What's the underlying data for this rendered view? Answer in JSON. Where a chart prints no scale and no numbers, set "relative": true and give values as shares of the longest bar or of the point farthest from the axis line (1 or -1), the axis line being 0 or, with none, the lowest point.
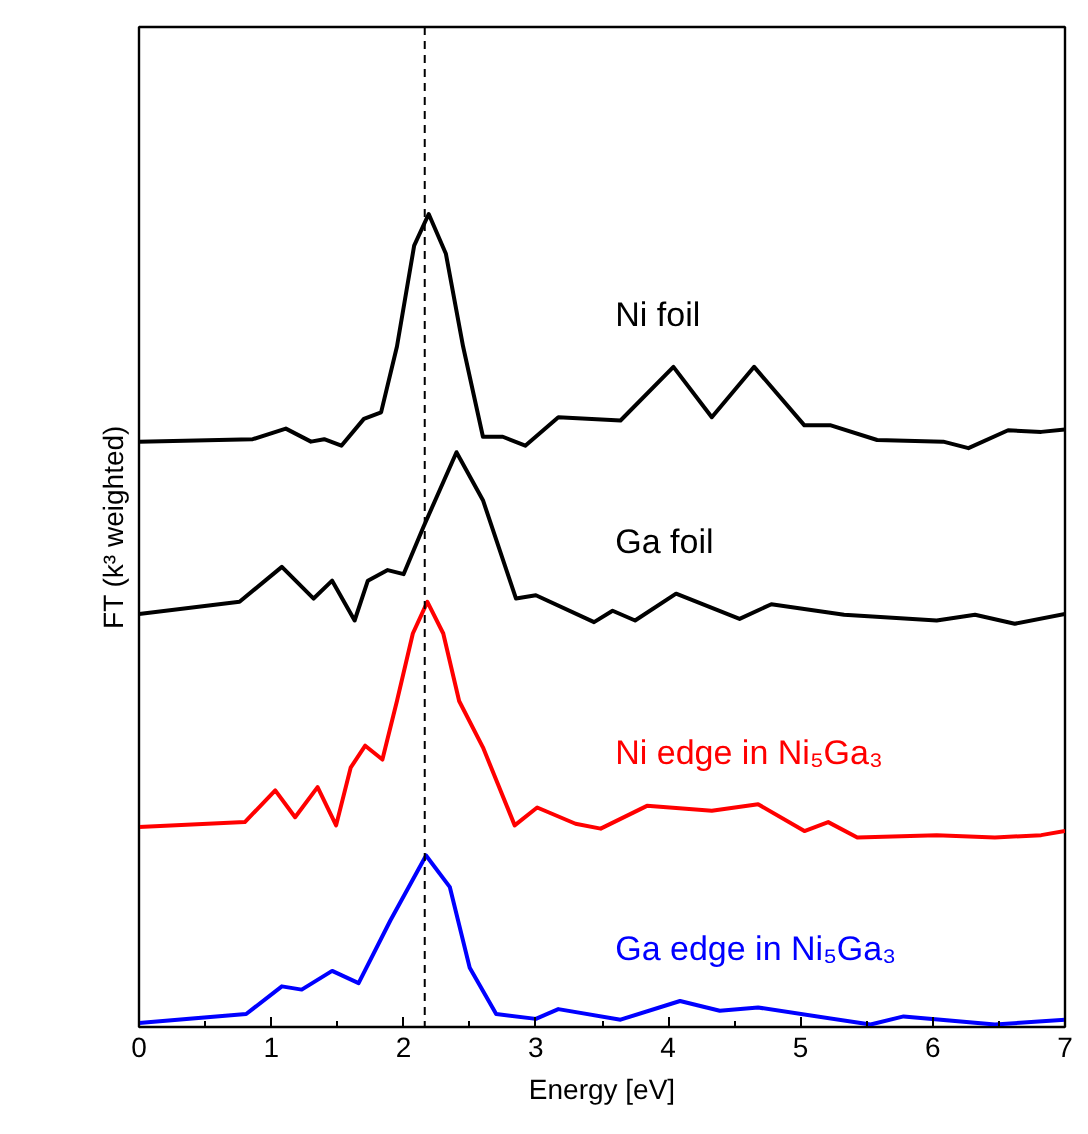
{
  "chart_data": {
    "type": "line",
    "relative": true,
    "xlabel": "Energy [eV]",
    "ylabel": "FT (k³ weighted)",
    "xlim": [
      0,
      7
    ],
    "xticks": [
      0,
      1,
      2,
      3,
      4,
      5,
      6,
      7
    ],
    "grid": false,
    "marker": "none",
    "line_style": "solid",
    "ref_lines": [
      {
        "axis": "x",
        "value": 2.16,
        "color": "#000000",
        "line_style": "dashed"
      }
    ],
    "series": [
      {
        "name": "Ni foil",
        "color": "#000000",
        "x": [
          0.0,
          0.86,
          1.11,
          1.3,
          1.4,
          1.53,
          1.7,
          1.83,
          1.95,
          2.08,
          2.19,
          2.32,
          2.45,
          2.6,
          2.75,
          2.92,
          3.17,
          3.64,
          4.04,
          4.33,
          4.65,
          5.03,
          5.23,
          5.58,
          6.08,
          6.27,
          6.57,
          6.82,
          7.0
        ],
        "values": [
          0.72,
          0.723,
          0.736,
          0.72,
          0.723,
          0.715,
          0.748,
          0.756,
          0.837,
          0.961,
          1.0,
          0.951,
          0.837,
          0.726,
          0.726,
          0.715,
          0.75,
          0.746,
          0.812,
          0.75,
          0.812,
          0.74,
          0.74,
          0.722,
          0.72,
          0.712,
          0.734,
          0.732,
          0.735
        ]
      },
      {
        "name": "Ga foil",
        "color": "#000000",
        "x": [
          0.0,
          0.76,
          1.08,
          1.32,
          1.46,
          1.63,
          1.73,
          1.88,
          2.0,
          2.15,
          2.4,
          2.6,
          2.85,
          3.0,
          3.44,
          3.58,
          3.75,
          4.06,
          4.54,
          4.78,
          5.33,
          6.03,
          6.32,
          6.62,
          7.0
        ],
        "values": [
          0.508,
          0.523,
          0.566,
          0.527,
          0.549,
          0.5,
          0.549,
          0.562,
          0.557,
          0.615,
          0.707,
          0.648,
          0.527,
          0.531,
          0.498,
          0.512,
          0.5,
          0.533,
          0.502,
          0.52,
          0.507,
          0.5,
          0.507,
          0.496,
          0.508
        ]
      },
      {
        "name": "Ni edge in Ni₅Ga₃",
        "color": "#ff0000",
        "x": [
          0.0,
          0.8,
          1.03,
          1.18,
          1.35,
          1.49,
          1.6,
          1.71,
          1.84,
          1.95,
          2.07,
          2.18,
          2.3,
          2.42,
          2.6,
          2.84,
          3.01,
          3.3,
          3.49,
          3.84,
          4.33,
          4.68,
          5.03,
          5.21,
          5.43,
          6.03,
          6.47,
          6.82,
          7.0
        ],
        "values": [
          0.246,
          0.252,
          0.291,
          0.258,
          0.295,
          0.248,
          0.319,
          0.346,
          0.329,
          0.401,
          0.484,
          0.523,
          0.484,
          0.401,
          0.344,
          0.248,
          0.27,
          0.25,
          0.244,
          0.272,
          0.266,
          0.274,
          0.241,
          0.252,
          0.233,
          0.236,
          0.233,
          0.236,
          0.241
        ]
      },
      {
        "name": "Ga edge in Ni₅Ga₃",
        "color": "#0000ff",
        "x": [
          0.0,
          0.81,
          1.08,
          1.23,
          1.46,
          1.66,
          1.9,
          2.17,
          2.35,
          2.5,
          2.7,
          3.0,
          3.17,
          3.64,
          4.09,
          4.39,
          4.68,
          5.53,
          5.78,
          6.47,
          7.0
        ],
        "values": [
          0.005,
          0.016,
          0.05,
          0.046,
          0.069,
          0.054,
          0.131,
          0.211,
          0.172,
          0.073,
          0.016,
          0.01,
          0.022,
          0.009,
          0.032,
          0.02,
          0.024,
          0.003,
          0.013,
          0.003,
          0.009
        ]
      }
    ]
  }
}
